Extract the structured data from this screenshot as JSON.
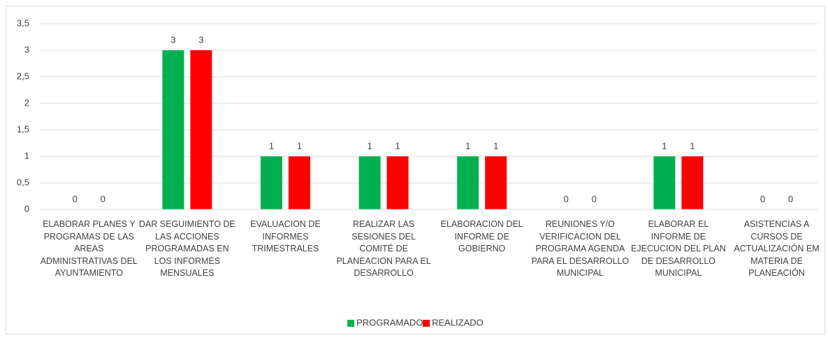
{
  "chart_data": {
    "type": "bar",
    "categories": [
      "ELABORAR PLANES Y PROGRAMAS DE LAS AREAS ADMINISTRATIVAS DEL AYUNTAMIENTO",
      "DAR SEGUIMIENTO DE LAS ACCIONES PROGRAMADAS EN LOS INFORMES MENSUALES",
      "EVALUACION DE INFORMES TRIMESTRALES",
      "REALIZAR LAS SESIONES DEL COMITÉ DE PLANEACION PARA EL DESARROLLO",
      "ELABORACION DEL INFORME DE GOBIERNO",
      "REUNIONES Y/O VERIFICACION DEL PROGRAMA AGENDA PARA EL DESARROLLO MUNICIPAL",
      "ELABORAR EL INFORME DE EJECUCION DEL PLAN DE DESARROLLO MUNICIPAL",
      "ASISTENCIAS A CURSOS DE ACTUALIZACIÓN EM MATERIA DE PLANEACIÓN"
    ],
    "series": [
      {
        "name": "PROGRAMADO",
        "color": "#00b050",
        "values": [
          0,
          3,
          1,
          1,
          1,
          0,
          1,
          0
        ]
      },
      {
        "name": "REALIZADO",
        "color": "#ff0000",
        "values": [
          0,
          3,
          1,
          1,
          1,
          0,
          1,
          0
        ]
      }
    ],
    "ylim": [
      0,
      3.5
    ],
    "yticks": [
      0,
      {
        "value": 0.5,
        "label": "0,5"
      },
      1,
      {
        "value": 1.5,
        "label": "1,5"
      },
      2,
      {
        "value": 2.5,
        "label": "2,5"
      },
      3,
      {
        "value": 3.5,
        "label": "3,5"
      }
    ],
    "grid": true,
    "legend": "bottom"
  }
}
